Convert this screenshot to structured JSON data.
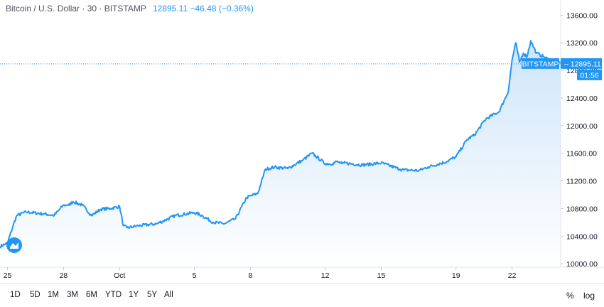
{
  "legend": {
    "symbol_text": "Bitcoin / U.S. Dollar · 30 · BITSTAMP",
    "price_text": "12895.11 −46.48 (−0.36%)"
  },
  "badges": {
    "exchange": "BITSTAMP",
    "price": "12895.11",
    "countdown": "01:56"
  },
  "timeframes": [
    "1D",
    "5D",
    "1M",
    "3M",
    "6M",
    "YTD",
    "1Y",
    "5Y",
    "All"
  ],
  "toolbar_right": {
    "percent": "%",
    "log": "log"
  },
  "colors": {
    "line": "#2196f3",
    "area_top": "#cfe5fa",
    "area_bottom": "#ffffff",
    "badge": "#2196f3"
  },
  "chart_data": {
    "type": "area",
    "title": "Bitcoin / U.S. Dollar · 30 · BITSTAMP",
    "xlabel": "",
    "ylabel": "",
    "x_ticks": [
      "25",
      "28",
      "Oct",
      "5",
      "8",
      "12",
      "15",
      "19",
      "22"
    ],
    "x_tick_days": [
      0,
      3,
      6,
      10,
      13,
      17,
      20,
      24,
      27
    ],
    "y_ticks": [
      "10000.00",
      "10400.00",
      "10800.00",
      "11200.00",
      "11600.00",
      "12000.00",
      "12400.00",
      "12800.00",
      "13200.00",
      "13600.00"
    ],
    "ylim": [
      9950,
      13820
    ],
    "xlim": [
      -0.4,
      29.6
    ],
    "last_price": 12895.11,
    "grid": false,
    "series": [
      {
        "x": [
          -0.4,
          0,
          0.3,
          0.5,
          1,
          2,
          2.5,
          3,
          3.3,
          3.5,
          4,
          4.5,
          5,
          5.5,
          6,
          6.2,
          6.4,
          7,
          8,
          9,
          10,
          10.4,
          11,
          11.6,
          12.2,
          12.8,
          13.4,
          13.8,
          14.3,
          15,
          15.8,
          16.3,
          17,
          17.4,
          17.6,
          17.9,
          18,
          19,
          20,
          21,
          21.2,
          22,
          22.5,
          23.5,
          24,
          24.6,
          25,
          25.6,
          26.3,
          26.8,
          27,
          27.2,
          27.4,
          27.6,
          27.8,
          28,
          28.3,
          28.7,
          29,
          29.3,
          29.6
        ],
        "y": [
          10250,
          10300,
          10550,
          10700,
          10750,
          10720,
          10700,
          10850,
          10850,
          10900,
          10850,
          10700,
          10790,
          10800,
          10830,
          10550,
          10520,
          10550,
          10580,
          10700,
          10740,
          10700,
          10600,
          10580,
          10650,
          10960,
          11020,
          11370,
          11400,
          11380,
          11500,
          11600,
          11450,
          11450,
          11480,
          11450,
          11460,
          11430,
          11460,
          11370,
          11360,
          11350,
          11400,
          11480,
          11550,
          11800,
          11870,
          12100,
          12200,
          12500,
          12950,
          13200,
          12920,
          13050,
          13000,
          13230,
          13050,
          13000,
          12950,
          12920,
          12895
        ]
      }
    ]
  }
}
